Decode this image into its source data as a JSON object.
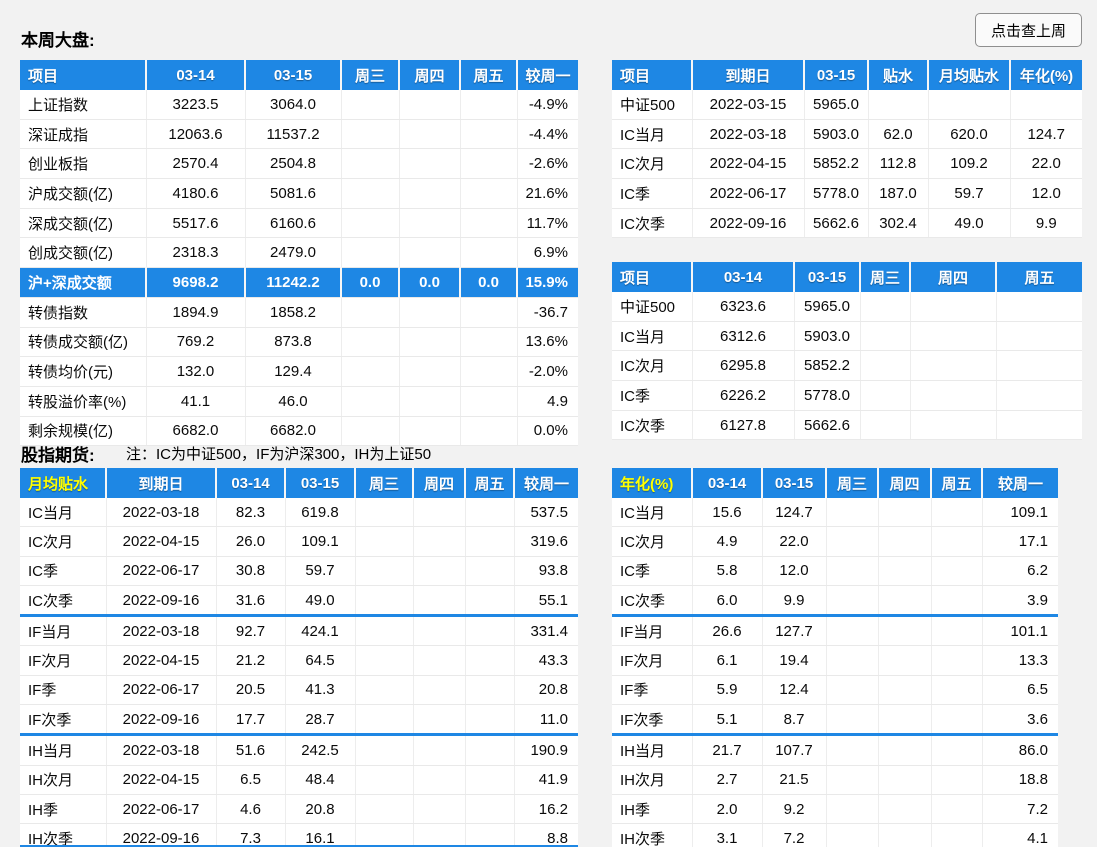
{
  "page": {
    "title_week": "本周大盘:",
    "title_futures": "股指期货:",
    "futures_note": "注：IC为中证500，IF为沪深300，IH为上证50",
    "last_week_button": "点击查上周"
  },
  "colors": {
    "header_blue": "#1e87e4",
    "accent_yellow": "#ffff00"
  },
  "tables": {
    "market": {
      "headers": [
        "项目",
        "03-14",
        "03-15",
        "周三",
        "周四",
        "周五",
        "较周一"
      ],
      "highlight_rows": [
        6
      ],
      "rows": [
        [
          "上证指数",
          "3223.5",
          "3064.0",
          "",
          "",
          "",
          "-4.9%"
        ],
        [
          "深证成指",
          "12063.6",
          "11537.2",
          "",
          "",
          "",
          "-4.4%"
        ],
        [
          "创业板指",
          "2570.4",
          "2504.8",
          "",
          "",
          "",
          "-2.6%"
        ],
        [
          "沪成交额(亿)",
          "4180.6",
          "5081.6",
          "",
          "",
          "",
          "21.6%"
        ],
        [
          "深成交额(亿)",
          "5517.6",
          "6160.6",
          "",
          "",
          "",
          "11.7%"
        ],
        [
          "创成交额(亿)",
          "2318.3",
          "2479.0",
          "",
          "",
          "",
          "6.9%"
        ],
        [
          "沪+深成交额",
          "9698.2",
          "11242.2",
          "0.0",
          "0.0",
          "0.0",
          "15.9%"
        ],
        [
          "转债指数",
          "1894.9",
          "1858.2",
          "",
          "",
          "",
          "-36.7"
        ],
        [
          "转债成交额(亿)",
          "769.2",
          "873.8",
          "",
          "",
          "",
          "13.6%"
        ],
        [
          "转债均价(元)",
          "132.0",
          "129.4",
          "",
          "",
          "",
          "-2.0%"
        ],
        [
          "转股溢价率(%)",
          "41.1",
          "46.0",
          "",
          "",
          "",
          "4.9"
        ],
        [
          "剩余规模(亿)",
          "6682.0",
          "6682.0",
          "",
          "",
          "",
          "0.0%"
        ]
      ]
    },
    "ic_basis": {
      "headers": [
        "项目",
        "到期日",
        "03-15",
        "贴水",
        "月均贴水",
        "年化(%)"
      ],
      "rows": [
        [
          "中证500",
          "2022-03-15",
          "5965.0",
          "",
          "",
          ""
        ],
        [
          "IC当月",
          "2022-03-18",
          "5903.0",
          "62.0",
          "620.0",
          "124.7"
        ],
        [
          "IC次月",
          "2022-04-15",
          "5852.2",
          "112.8",
          "109.2",
          "22.0"
        ],
        [
          "IC季",
          "2022-06-17",
          "5778.0",
          "187.0",
          "59.7",
          "12.0"
        ],
        [
          "IC次季",
          "2022-09-16",
          "5662.6",
          "302.4",
          "49.0",
          "9.9"
        ]
      ]
    },
    "ic_prices": {
      "headers": [
        "项目",
        "03-14",
        "03-15",
        "周三",
        "周四",
        "周五"
      ],
      "rows": [
        [
          "中证500",
          "6323.6",
          "5965.0",
          "",
          "",
          ""
        ],
        [
          "IC当月",
          "6312.6",
          "5903.0",
          "",
          "",
          ""
        ],
        [
          "IC次月",
          "6295.8",
          "5852.2",
          "",
          "",
          ""
        ],
        [
          "IC季",
          "6226.2",
          "5778.0",
          "",
          "",
          ""
        ],
        [
          "IC次季",
          "6127.8",
          "5662.6",
          "",
          "",
          ""
        ]
      ]
    },
    "monthly_discount": {
      "headers": [
        "月均贴水",
        "到期日",
        "03-14",
        "03-15",
        "周三",
        "周四",
        "周五",
        "较周一"
      ],
      "first_header_yellow": true,
      "group_breaks": [
        3,
        7
      ],
      "rows": [
        [
          "IC当月",
          "2022-03-18",
          "82.3",
          "619.8",
          "",
          "",
          "",
          "537.5"
        ],
        [
          "IC次月",
          "2022-04-15",
          "26.0",
          "109.1",
          "",
          "",
          "",
          "319.6"
        ],
        [
          "IC季",
          "2022-06-17",
          "30.8",
          "59.7",
          "",
          "",
          "",
          "93.8"
        ],
        [
          "IC次季",
          "2022-09-16",
          "31.6",
          "49.0",
          "",
          "",
          "",
          "55.1"
        ],
        [
          "IF当月",
          "2022-03-18",
          "92.7",
          "424.1",
          "",
          "",
          "",
          "331.4"
        ],
        [
          "IF次月",
          "2022-04-15",
          "21.2",
          "64.5",
          "",
          "",
          "",
          "43.3"
        ],
        [
          "IF季",
          "2022-06-17",
          "20.5",
          "41.3",
          "",
          "",
          "",
          "20.8"
        ],
        [
          "IF次季",
          "2022-09-16",
          "17.7",
          "28.7",
          "",
          "",
          "",
          "11.0"
        ],
        [
          "IH当月",
          "2022-03-18",
          "51.6",
          "242.5",
          "",
          "",
          "",
          "190.9"
        ],
        [
          "IH次月",
          "2022-04-15",
          "6.5",
          "48.4",
          "",
          "",
          "",
          "41.9"
        ],
        [
          "IH季",
          "2022-06-17",
          "4.6",
          "20.8",
          "",
          "",
          "",
          "16.2"
        ],
        [
          "IH次季",
          "2022-09-16",
          "7.3",
          "16.1",
          "",
          "",
          "",
          "8.8"
        ]
      ]
    },
    "annualized": {
      "headers": [
        "年化(%)",
        "03-14",
        "03-15",
        "周三",
        "周四",
        "周五",
        "较周一"
      ],
      "first_header_yellow": true,
      "group_breaks": [
        3,
        7
      ],
      "rows": [
        [
          "IC当月",
          "15.6",
          "124.7",
          "",
          "",
          "",
          "109.1"
        ],
        [
          "IC次月",
          "4.9",
          "22.0",
          "",
          "",
          "",
          "17.1"
        ],
        [
          "IC季",
          "5.8",
          "12.0",
          "",
          "",
          "",
          "6.2"
        ],
        [
          "IC次季",
          "6.0",
          "9.9",
          "",
          "",
          "",
          "3.9"
        ],
        [
          "IF当月",
          "26.6",
          "127.7",
          "",
          "",
          "",
          "101.1"
        ],
        [
          "IF次月",
          "6.1",
          "19.4",
          "",
          "",
          "",
          "13.3"
        ],
        [
          "IF季",
          "5.9",
          "12.4",
          "",
          "",
          "",
          "6.5"
        ],
        [
          "IF次季",
          "5.1",
          "8.7",
          "",
          "",
          "",
          "3.6"
        ],
        [
          "IH当月",
          "21.7",
          "107.7",
          "",
          "",
          "",
          "86.0"
        ],
        [
          "IH次月",
          "2.7",
          "21.5",
          "",
          "",
          "",
          "18.8"
        ],
        [
          "IH季",
          "2.0",
          "9.2",
          "",
          "",
          "",
          "7.2"
        ],
        [
          "IH次季",
          "3.1",
          "7.2",
          "",
          "",
          "",
          "4.1"
        ]
      ]
    }
  }
}
